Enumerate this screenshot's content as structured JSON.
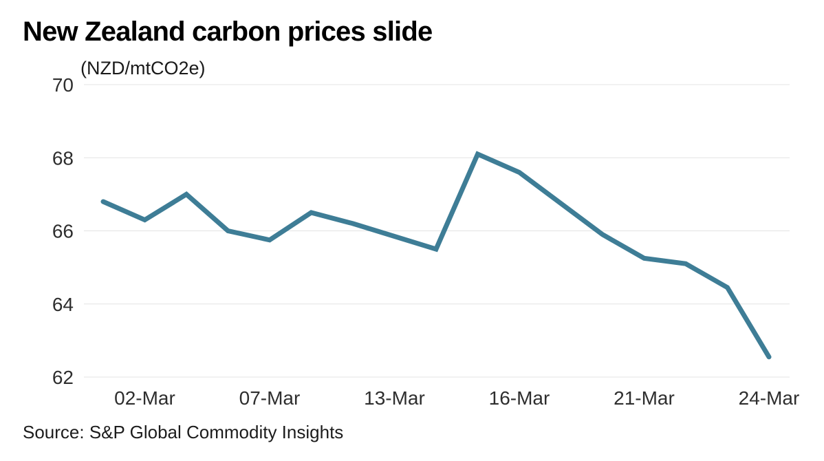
{
  "header": {
    "title": "New Zealand carbon prices slide",
    "unit_label": "(NZD/mtCO2e)"
  },
  "source": {
    "text": "Source: S&P Global Commodity Insights"
  },
  "chart_data": {
    "type": "line",
    "title": "New Zealand carbon prices slide",
    "ylabel": "(NZD/mtCO2e)",
    "unit": "NZD/mtCO2e",
    "grid": "horizontal",
    "legend_position": "none",
    "line_color": "#3e7d96",
    "grid_color": "#e3e3e3",
    "ylim": [
      62,
      70
    ],
    "yticks": [
      70,
      68,
      66,
      64,
      62
    ],
    "x_tick_labels": [
      "02-Mar",
      "07-Mar",
      "13-Mar",
      "16-Mar",
      "21-Mar",
      "24-Mar"
    ],
    "x_tick_indices": [
      1,
      4,
      7,
      10,
      13,
      16
    ],
    "values": [
      66.8,
      66.3,
      67.0,
      66.0,
      65.75,
      66.5,
      66.2,
      65.85,
      65.5,
      68.1,
      67.6,
      66.75,
      65.9,
      65.25,
      65.1,
      64.45,
      62.55
    ],
    "num_points": 17
  }
}
